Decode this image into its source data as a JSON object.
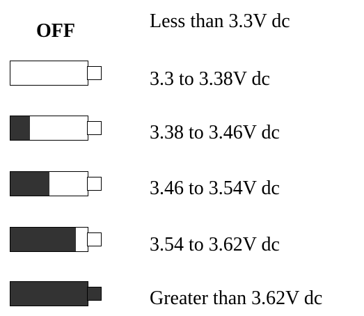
{
  "colors": {
    "battery_fill": "#333333",
    "battery_outline": "#000000",
    "background": "#ffffff"
  },
  "legend": {
    "rows": [
      {
        "state": "off",
        "icon_label": "OFF",
        "range_label": "Less than 3.3V dc"
      },
      {
        "state": "empty",
        "fill_fraction": 0.0,
        "tip_fill_fraction": 0.0,
        "range_label": "3.3 to 3.38V dc"
      },
      {
        "state": "low",
        "fill_fraction": 0.25,
        "tip_fill_fraction": 0.0,
        "range_label": "3.38 to 3.46V dc"
      },
      {
        "state": "half",
        "fill_fraction": 0.5,
        "tip_fill_fraction": 0.0,
        "range_label": "3.46 to 3.54V dc"
      },
      {
        "state": "high",
        "fill_fraction": 0.85,
        "tip_fill_fraction": 0.0,
        "range_label": "3.54 to 3.62V dc"
      },
      {
        "state": "full",
        "fill_fraction": 1.0,
        "tip_fill_fraction": 1.0,
        "range_label": "Greater than 3.62V dc"
      }
    ]
  }
}
